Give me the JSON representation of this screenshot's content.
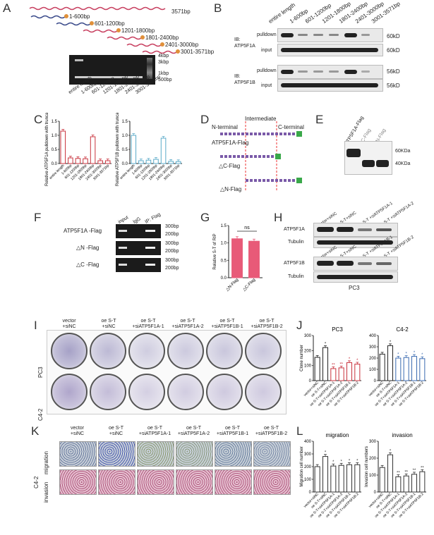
{
  "panels": {
    "A": "A",
    "B": "B",
    "C": "C",
    "D": "D",
    "E": "E",
    "F": "F",
    "G": "G",
    "H": "H",
    "I": "I",
    "J": "J",
    "K": "K",
    "L": "L"
  },
  "A": {
    "fragments": [
      "3571bp",
      "1-600bp",
      "601-1200bp",
      "1201-1800bp",
      "1801-2400bp",
      "2401-3000bp",
      "3001-3571bp"
    ],
    "markers": [
      "4kbp",
      "3kbp",
      "1kbp",
      "500bp"
    ],
    "lanes": [
      "entire length",
      "1-600bp",
      "601-1200bp",
      "1201-1800bp",
      "1801-2400bp",
      "2401-3000bp",
      "3001-3571bp"
    ]
  },
  "B": {
    "lanes": [
      "entire length",
      "1-600bp",
      "601-1200bp",
      "1201-1800bp",
      "1801-2400bp",
      "2401-3000bp",
      "3001-3571bp"
    ],
    "ib1": "IB:\nATP5F1A",
    "ib2": "IB:\nATP5F1B",
    "pulldown": "pulldown",
    "input": "input",
    "size1": "60kD",
    "size2": "56kD"
  },
  "C": {
    "chart_data": [
      {
        "type": "bar",
        "ylabel": "Relative ATP5F1A pulldown with truncated S-T",
        "categories": [
          "entire length",
          "1-600bp",
          "601-1200bp",
          "1201-1800bp",
          "1801-2400bp",
          "2401-3000bp",
          "3001-3571bp"
        ],
        "values": [
          1.15,
          0.2,
          0.18,
          0.17,
          0.95,
          0.1,
          0.1
        ],
        "ylim": [
          0,
          1.5
        ],
        "yticks": [
          "0.0",
          "0.5",
          "1.0",
          "1.5"
        ],
        "color": "#c8323c"
      },
      {
        "type": "bar",
        "ylabel": "Relative ATP5F1B pulldown with truncated S-T",
        "categories": [
          "entire length",
          "1-600bp",
          "601-1200bp",
          "1201-1800bp",
          "1801-2400bp",
          "2401-3000bp",
          "3001-3571bp"
        ],
        "values": [
          1.0,
          0.1,
          0.12,
          0.15,
          0.9,
          0.08,
          0.07
        ],
        "ylim": [
          0,
          1.5
        ],
        "yticks": [
          "0.0",
          "0.5",
          "1.0",
          "1.5"
        ],
        "color": "#5aaac8"
      }
    ]
  },
  "D": {
    "nterm": "N-terminal",
    "inter": "Intermediate",
    "cterm": "C-terminal",
    "l1": "ATP5F1A-Flag",
    "l2": "△C-Flag",
    "l3": "△N-Flag"
  },
  "E": {
    "lanes": [
      "ATP5F1A-Flag",
      "△C-Flag",
      "△N-Flag"
    ],
    "s1": "60KDa",
    "s2": "40KDa"
  },
  "F": {
    "cols": [
      "input",
      "IgG",
      "IP: Flag"
    ],
    "rows": [
      "ATP5F1A -Flag",
      "△N -Flag",
      "△C -Flag"
    ],
    "s1": "300bp",
    "s2": "200bp"
  },
  "G": {
    "chart_data": {
      "type": "bar",
      "ylabel": "Relative S-T of RIP",
      "categories": [
        "△N-Flag",
        "△C-Flag"
      ],
      "values": [
        1.12,
        1.05
      ],
      "ylim": [
        0,
        1.5
      ],
      "yticks": [
        "0.0",
        "0.5",
        "1.0",
        "1.5"
      ],
      "annotation": "ns",
      "color": "#e85a78"
    }
  },
  "H": {
    "lanesA": [
      "vector+siNC",
      "oe S-T+siNC",
      "oe S-T +siATP5F1A-1",
      "oe S-T +siATP5F1A-2"
    ],
    "lanesB": [
      "vector+siNC",
      "oe S-T+siNC",
      "oe S-T +siATP5F1B-1",
      "oe S-T +siATP5F1B-2"
    ],
    "r1": "ATP5F1A",
    "r2": "Tubulin",
    "r3": "ATP5F1B",
    "r4": "Tubulin",
    "cell": "PC3"
  },
  "I": {
    "cols": [
      "vector\n+siNC",
      "oe S-T\n+siNC",
      "oe S-T\n+siATP5F1A-1",
      "oe S-T\n+siATP5F1A-2",
      "oe S-T\n+siATP5F1B-1",
      "oe S-T\n+siATP5F1B-2"
    ],
    "rows": [
      "PC3",
      "C4-2"
    ]
  },
  "J": {
    "chart_data": [
      {
        "type": "bar",
        "title": "PC3",
        "ylabel": "Clone number",
        "categories": [
          "vector+siNC",
          "oe S-T+siNC",
          "oe S-T+siATP5F1A-1",
          "oe S-T+siATP5F1A-2",
          "oe S-T+siATP5F1B-1",
          "oe S-T+siATP5F1B-2"
        ],
        "values": [
          155,
          220,
          80,
          85,
          120,
          110
        ],
        "ylim": [
          0,
          300
        ],
        "yticks": [
          "0",
          "100",
          "200",
          "300"
        ],
        "stars": [
          "",
          "*",
          "**",
          "**",
          "*",
          "*"
        ]
      },
      {
        "type": "bar",
        "title": "C4-2",
        "ylabel": "",
        "categories": [
          "vector+siNC",
          "oe S-T+siNC",
          "oe S-T+siATP5F1A-1",
          "oe S-T+siATP5F1A-2",
          "oe S-T+siATP5F1B-1",
          "oe S-T+siATP5F1B-2"
        ],
        "values": [
          235,
          310,
          200,
          205,
          215,
          195
        ],
        "ylim": [
          0,
          400
        ],
        "yticks": [
          "0",
          "100",
          "200",
          "300",
          "400"
        ],
        "stars": [
          "",
          "*",
          "*",
          "*",
          "*",
          "*"
        ]
      }
    ]
  },
  "K": {
    "cols": [
      "vector\n+siNC",
      "oe S-T\n+siNC",
      "oe S-T\n+siATP5F1A-1",
      "oe S-T\n+siATP5F1A-2",
      "oe S-T\n+siATP5F1B-1",
      "oe S-T\n+siATP5F1B-2"
    ],
    "rows": [
      "migration",
      "invasion"
    ],
    "cell": "C4-2"
  },
  "L": {
    "chart_data": [
      {
        "type": "bar",
        "title": "migration",
        "ylabel": "Migration cell number",
        "categories": [
          "vector+siNC",
          "oe S-T+siNC",
          "oe S-T+siATP5F1A-1",
          "oe S-T+siATP5F1A-2",
          "oe S-T+siATP5F1B-1",
          "oe S-T+siATP5F1B-2"
        ],
        "values": [
          200,
          280,
          205,
          210,
          215,
          215
        ],
        "ylim": [
          0,
          400
        ],
        "yticks": [
          "0",
          "100",
          "200",
          "300",
          "400"
        ],
        "stars": [
          "",
          "*",
          "*",
          "*",
          "*",
          "*"
        ]
      },
      {
        "type": "bar",
        "title": "invasion",
        "ylabel": "Invasion cell numbers",
        "categories": [
          "vector+siNC",
          "oe S-T+siNC",
          "oe S-T+siATP5F1A-1",
          "oe S-T+siATP5F1A-2",
          "oe S-T+siATP5F1B-1",
          "oe S-T+siATP5F1B-2"
        ],
        "values": [
          145,
          220,
          90,
          95,
          105,
          120
        ],
        "ylim": [
          0,
          300
        ],
        "yticks": [
          "0",
          "100",
          "200",
          "300"
        ],
        "stars": [
          "",
          "*",
          "**",
          "**",
          "**",
          "**"
        ]
      }
    ]
  }
}
